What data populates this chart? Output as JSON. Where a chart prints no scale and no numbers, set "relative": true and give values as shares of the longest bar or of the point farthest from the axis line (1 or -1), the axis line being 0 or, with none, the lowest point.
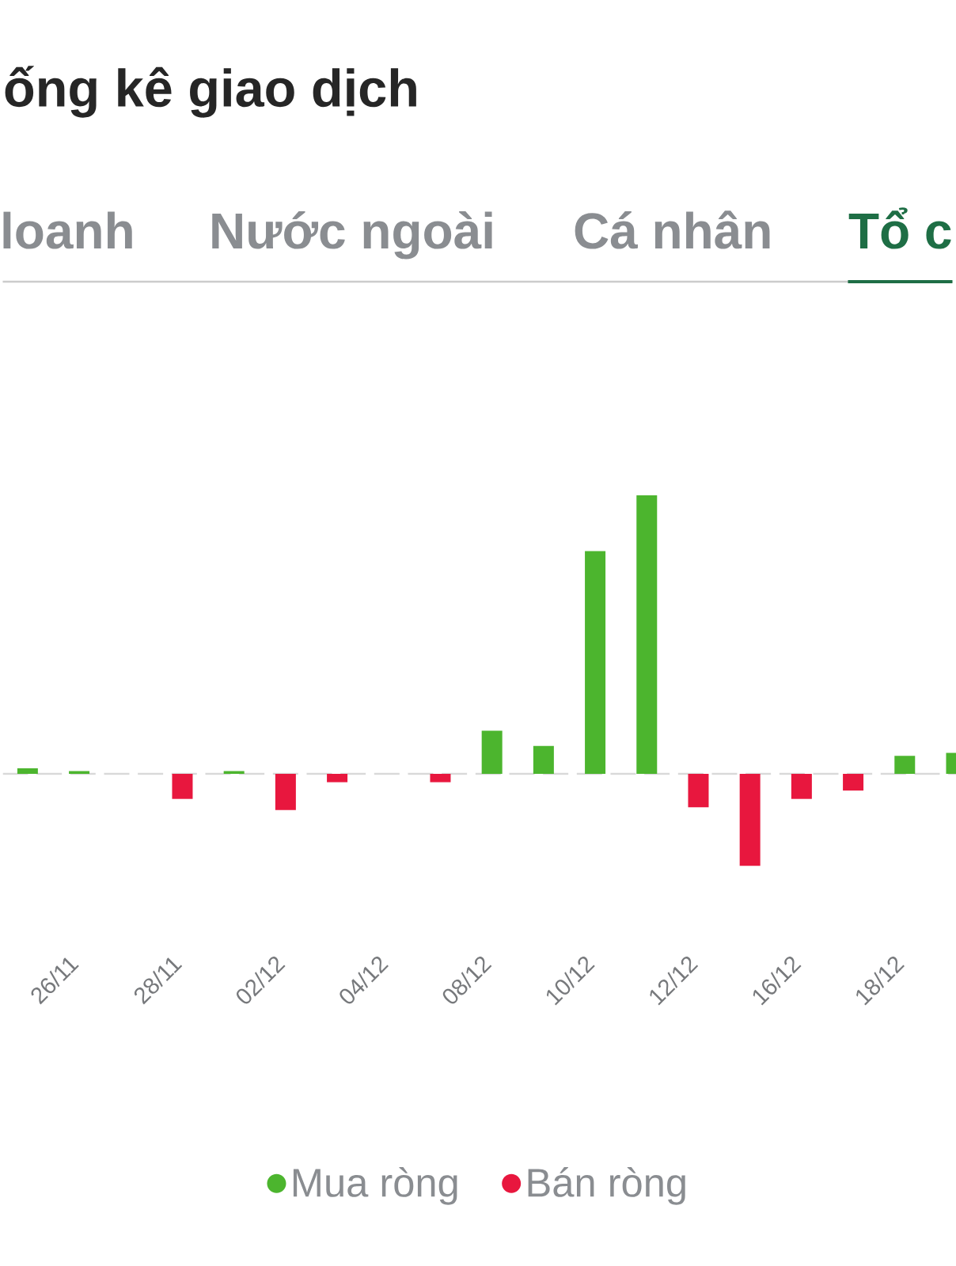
{
  "chart_data": {
    "type": "bar",
    "title": "ống kê giao dịch",
    "annotations": [
      "loanh",
      "Nước ngoài",
      "Cá nhân",
      "Tổ c"
    ],
    "categories": [
      null,
      "26/11",
      null,
      "28/11",
      null,
      "02/12",
      null,
      "04/12",
      null,
      "08/12",
      null,
      "10/12",
      null,
      "12/12",
      null,
      "16/12",
      null,
      "18/12",
      null
    ],
    "relative": true,
    "legend": "bottom",
    "ref_lines": [
      {
        "axis": "y",
        "value": 0,
        "color": "#d9d9d9",
        "line_style": "dashed"
      }
    ],
    "series": [
      {
        "name": "Mua ròng",
        "color": "#4cb52e",
        "values": [
          0.02,
          0.01,
          null,
          null,
          0.01,
          null,
          null,
          null,
          null,
          0.155,
          0.1,
          0.8,
          1,
          null,
          null,
          null,
          null,
          0.065,
          0.075
        ]
      },
      {
        "name": "Bán ròng",
        "color": "#e8173e",
        "values": [
          null,
          null,
          null,
          -0.09,
          null,
          -0.13,
          -0.03,
          null,
          -0.03,
          null,
          null,
          null,
          null,
          -0.12,
          -0.33,
          -0.09,
          -0.06,
          null,
          null
        ]
      }
    ]
  }
}
